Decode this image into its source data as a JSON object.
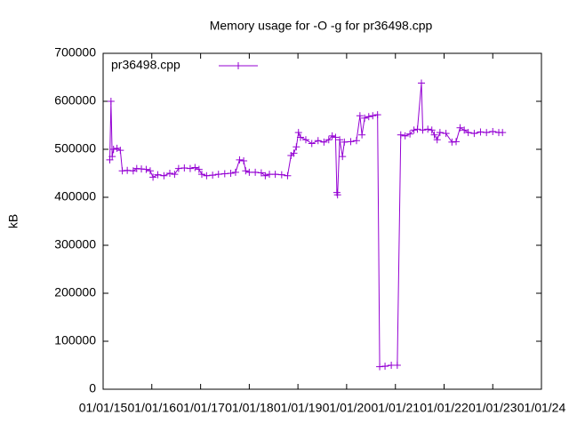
{
  "chart_data": {
    "type": "line",
    "title": "Memory usage for -O -g for pr36498.cpp",
    "y_label": "kB",
    "legend": "top-left",
    "x": [
      "2015-02-20",
      "2015-03-01",
      "2015-03-10",
      "2015-03-20",
      "2015-04-15",
      "2015-05-10",
      "2015-05-25",
      "2015-07-01",
      "2015-08-15",
      "2015-09-10",
      "2015-10-15",
      "2015-11-20",
      "2015-12-20",
      "2016-01-10",
      "2016-02-15",
      "2016-04-01",
      "2016-05-15",
      "2016-06-20",
      "2016-07-20",
      "2016-09-01",
      "2016-10-15",
      "2016-11-20",
      "2016-12-20",
      "2017-01-10",
      "2017-02-15",
      "2017-04-01",
      "2017-05-15",
      "2017-07-01",
      "2017-08-15",
      "2017-09-20",
      "2017-10-20",
      "2017-11-20",
      "2017-12-05",
      "2018-01-01",
      "2018-02-15",
      "2018-04-01",
      "2018-05-01",
      "2018-06-01",
      "2018-07-15",
      "2018-09-01",
      "2018-10-15",
      "2018-11-10",
      "2018-12-01",
      "2018-12-20",
      "2019-01-05",
      "2019-01-20",
      "2019-03-01",
      "2019-04-15",
      "2019-06-01",
      "2019-07-15",
      "2019-08-20",
      "2019-09-15",
      "2019-10-10",
      "2019-10-20",
      "2019-10-25",
      "2019-11-10",
      "2019-12-01",
      "2019-12-15",
      "2020-02-01",
      "2020-03-15",
      "2020-04-10",
      "2020-04-25",
      "2020-05-15",
      "2020-06-15",
      "2020-07-15",
      "2020-08-20",
      "2020-09-05",
      "2020-10-15",
      "2020-12-01",
      "2021-01-15",
      "2021-02-10",
      "2021-03-15",
      "2021-04-20",
      "2021-05-20",
      "2021-06-15",
      "2021-07-15",
      "2021-07-25",
      "2021-09-01",
      "2021-10-01",
      "2021-10-20",
      "2021-11-10",
      "2021-12-01",
      "2022-01-15",
      "2022-03-01",
      "2022-04-01",
      "2022-05-01",
      "2022-06-01",
      "2022-07-01",
      "2022-08-15",
      "2022-10-01",
      "2022-11-15",
      "2023-01-01",
      "2023-02-15",
      "2023-03-15"
    ],
    "series": [
      {
        "name": "pr36498.cpp",
        "color": "#9400d3",
        "values": [
          478000,
          600000,
          485000,
          500000,
          502000,
          498000,
          455000,
          456000,
          455000,
          460000,
          459000,
          458000,
          455000,
          442000,
          447000,
          445000,
          450000,
          448000,
          460000,
          461000,
          460000,
          462000,
          458000,
          448000,
          445000,
          446000,
          448000,
          449000,
          450000,
          452000,
          478000,
          476000,
          455000,
          452000,
          452000,
          451000,
          445000,
          448000,
          448000,
          447000,
          445000,
          487000,
          492000,
          505000,
          535000,
          525000,
          520000,
          512000,
          518000,
          515000,
          520000,
          528000,
          525000,
          410000,
          405000,
          520000,
          485000,
          515000,
          516000,
          518000,
          570000,
          530000,
          565000,
          568000,
          570000,
          572000,
          47000,
          48000,
          50000,
          50000,
          530000,
          528000,
          532000,
          540000,
          542000,
          638000,
          540000,
          542000,
          540000,
          530000,
          520000,
          535000,
          533000,
          515000,
          516000,
          545000,
          540000,
          535000,
          533000,
          536000,
          535000,
          537000,
          535000,
          535000
        ]
      }
    ],
    "xlim": [
      "2015-01-01",
      "2024-01-01"
    ],
    "xticks": [
      {
        "value": "2015-01-01",
        "label": "01/01/15"
      },
      {
        "value": "2016-01-01",
        "label": "01/01/16"
      },
      {
        "value": "2017-01-01",
        "label": "01/01/17"
      },
      {
        "value": "2018-01-01",
        "label": "01/01/18"
      },
      {
        "value": "2019-01-01",
        "label": "01/01/19"
      },
      {
        "value": "2020-01-01",
        "label": "01/01/20"
      },
      {
        "value": "2021-01-01",
        "label": "01/01/21"
      },
      {
        "value": "2022-01-01",
        "label": "01/01/22"
      },
      {
        "value": "2023-01-01",
        "label": "01/01/23"
      },
      {
        "value": "2024-01-01",
        "label": "01/01/24"
      }
    ],
    "ylim": [
      0,
      700000
    ],
    "yticks": [
      0,
      100000,
      200000,
      300000,
      400000,
      500000,
      600000,
      700000
    ]
  }
}
